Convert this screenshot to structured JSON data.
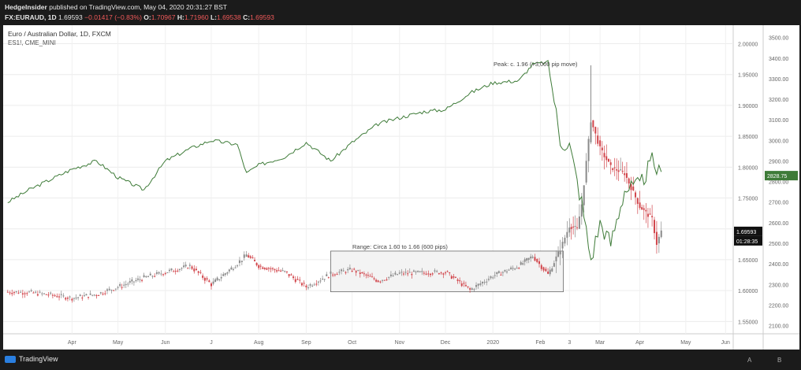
{
  "header": {
    "publisher": "HedgeInsider",
    "published_text": "published on TradingView.com, May 04, 2020 20:31:27 BST",
    "symbol": "FX:EURAUD, 1D",
    "last": "1.69593",
    "change": "−0.01417 (−0.83%)",
    "o_label": "O:",
    "o_value": "1.70967",
    "h_label": "H:",
    "h_value": "1.71960",
    "l_label": "L:",
    "l_value": "1.69538",
    "c_label": "C:",
    "c_value": "1.69593"
  },
  "footer": {
    "brand": "TradingView",
    "scale_a": "A",
    "scale_b": "B"
  },
  "colors": {
    "up": "#8a8a8a",
    "down": "#d1454b",
    "overlay": "#3e7b38",
    "box_fill": "#f3f3f3",
    "box_stroke": "#555555"
  },
  "chart_data": {
    "type": "line",
    "title": "Euro / Australian Dollar, 1D, FXCM",
    "subtitle": "ES1!, CME_MINI",
    "x_ticks": [
      "Apr",
      "May",
      "Jun",
      "J",
      "Aug",
      "Sep",
      "Oct",
      "Nov",
      "Dec",
      "2020",
      "Feb",
      "3",
      "Mar",
      "Apr",
      "May",
      "Jun"
    ],
    "left_axis_ticks": [
      "2.00000",
      "1.95000",
      "1.90000",
      "1.85000",
      "1.80000",
      "1.75000",
      "1.70000",
      "1.65000",
      "1.60000",
      "1.55000"
    ],
    "right_axis_ticks": [
      "3500.00",
      "3400.00",
      "3300.00",
      "3200.00",
      "3100.00",
      "3000.00",
      "2900.00",
      "2800.00",
      "2700.00",
      "2600.00",
      "2500.00",
      "2400.00",
      "2300.00",
      "2200.00",
      "2100.00"
    ],
    "left_axis_range": [
      1.53,
      2.03
    ],
    "right_axis_range": [
      2060,
      3560
    ],
    "price_badges": {
      "es_last": "2828.75",
      "euraud_last": "1.69593",
      "countdown": "01:28:35"
    },
    "annotations": {
      "peak": "Peak: c. 1.96 (+3,000 pip move)",
      "range": "Range: Circa 1.60 to 1.66 (600 pips)"
    },
    "series": [
      {
        "name": "EURAUD",
        "x": [
          "2019-03-04",
          "2019-03-18",
          "2019-04-01",
          "2019-04-15",
          "2019-05-01",
          "2019-05-15",
          "2019-06-01",
          "2019-06-15",
          "2019-07-01",
          "2019-07-15",
          "2019-08-01",
          "2019-08-07",
          "2019-08-15",
          "2019-09-01",
          "2019-09-15",
          "2019-10-01",
          "2019-10-15",
          "2019-11-01",
          "2019-11-15",
          "2019-12-01",
          "2019-12-15",
          "2019-12-31",
          "2020-01-15",
          "2020-02-01",
          "2020-02-10",
          "2020-02-20",
          "2020-02-28",
          "2020-03-05",
          "2020-03-10",
          "2020-03-13",
          "2020-03-19",
          "2020-03-25",
          "2020-04-01",
          "2020-04-10",
          "2020-04-20",
          "2020-04-28",
          "2020-05-01",
          "2020-05-04"
        ],
        "values": [
          1.598,
          1.597,
          1.593,
          1.588,
          1.594,
          1.606,
          1.621,
          1.63,
          1.64,
          1.61,
          1.644,
          1.658,
          1.64,
          1.63,
          1.606,
          1.627,
          1.634,
          1.616,
          1.628,
          1.629,
          1.63,
          1.601,
          1.624,
          1.64,
          1.656,
          1.626,
          1.667,
          1.705,
          1.7,
          1.74,
          1.876,
          1.83,
          1.8,
          1.79,
          1.736,
          1.716,
          1.676,
          1.696
        ]
      },
      {
        "name": "ES1!",
        "x": [
          "2019-03-04",
          "2019-03-18",
          "2019-04-01",
          "2019-04-15",
          "2019-05-01",
          "2019-05-15",
          "2019-06-01",
          "2019-06-15",
          "2019-07-01",
          "2019-07-15",
          "2019-08-01",
          "2019-08-07",
          "2019-08-15",
          "2019-09-01",
          "2019-09-15",
          "2019-10-01",
          "2019-10-15",
          "2019-11-01",
          "2019-11-15",
          "2019-12-01",
          "2019-12-15",
          "2019-12-31",
          "2020-01-15",
          "2020-02-01",
          "2020-02-10",
          "2020-02-20",
          "2020-02-28",
          "2020-03-05",
          "2020-03-10",
          "2020-03-13",
          "2020-03-19",
          "2020-03-25",
          "2020-04-01",
          "2020-04-10",
          "2020-04-20",
          "2020-04-28",
          "2020-05-01",
          "2020-05-04"
        ],
        "values": [
          2700,
          2760,
          2810,
          2860,
          2900,
          2820,
          2760,
          2900,
          2960,
          3000,
          2980,
          2840,
          2880,
          2920,
          2990,
          2900,
          2990,
          3080,
          3110,
          3140,
          3150,
          3230,
          3280,
          3290,
          3370,
          3380,
          3000,
          2980,
          2800,
          2700,
          2420,
          2600,
          2500,
          2760,
          2780,
          2900,
          2860,
          2830
        ]
      }
    ]
  }
}
